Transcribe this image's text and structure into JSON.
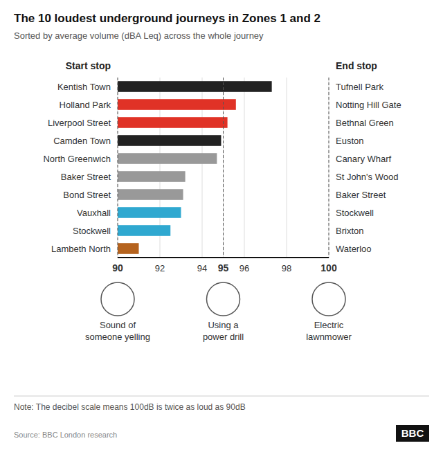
{
  "chart_data": {
    "type": "bar",
    "orientation": "horizontal",
    "title": "The 10 loudest underground journeys in Zones 1 and 2",
    "subtitle": "Sorted by average volume (dBA Leq) across the whole journey",
    "ylabel": "Start stop",
    "y2label": "End stop",
    "categories": [
      "Kentish Town",
      "Holland Park",
      "Liverpool Street",
      "Camden Town",
      "North Greenwich",
      "Baker Street",
      "Bond Street",
      "Vauxhall",
      "Stockwell",
      "Lambeth North"
    ],
    "categories_right": [
      "Tufnell Park",
      "Notting Hill Gate",
      "Bethnal Green",
      "Euston",
      "Canary Wharf",
      "St John's Wood",
      "Baker Street",
      "Stockwell",
      "Brixton",
      "Waterloo"
    ],
    "values": [
      97.3,
      95.6,
      95.2,
      94.9,
      94.7,
      93.2,
      93.1,
      93.0,
      92.5,
      91.0
    ],
    "colors": [
      "#222222",
      "#e03226",
      "#e03226",
      "#222222",
      "#999999",
      "#999999",
      "#999999",
      "#2fa8d0",
      "#2fa8d0",
      "#b5631e"
    ],
    "xlim": [
      90,
      100
    ],
    "xticks": [
      90,
      92,
      94,
      95,
      96,
      98,
      100
    ],
    "grid": true,
    "annotations": [
      {
        "x": 90,
        "label": "Sound of\nsomeone yelling"
      },
      {
        "x": 95,
        "label": "Using a\npower drill"
      },
      {
        "x": 100,
        "label": "Electric\nlawnmower"
      }
    ],
    "note": "Note: The decibel scale means 100dB is twice as loud as 90dB",
    "source": "Source: BBC London research",
    "logo": "BBC"
  }
}
